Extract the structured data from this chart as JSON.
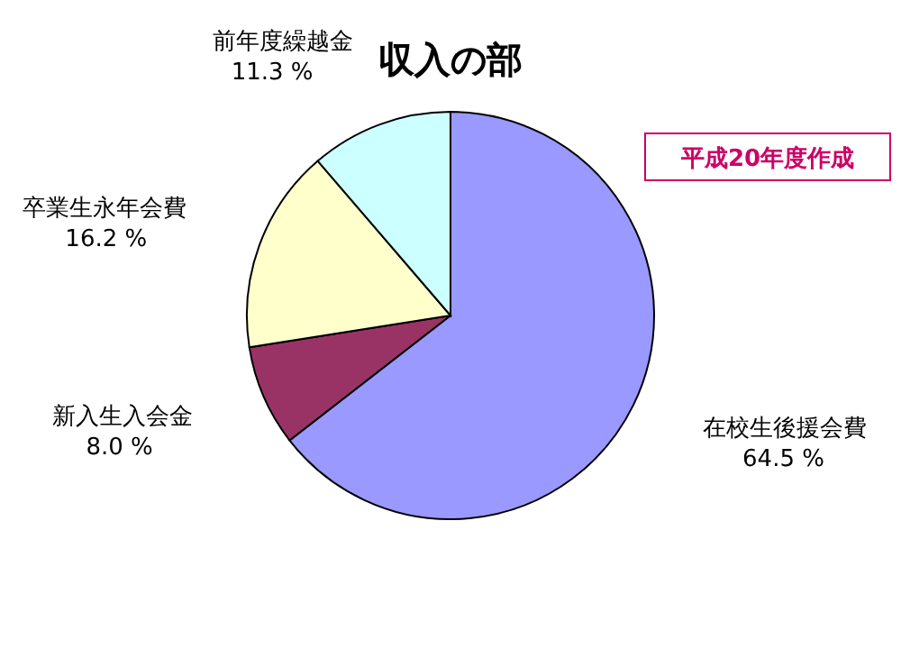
{
  "chart_data": {
    "type": "pie",
    "title": "収入の部",
    "categories": [
      "在校生後援会費",
      "新入生入会金",
      "卒業生永年会費",
      "前年度繰越金"
    ],
    "values": [
      64.5,
      8.0,
      16.2,
      11.3
    ],
    "colors": [
      "#9999ff",
      "#993366",
      "#ffffcc",
      "#ccffff"
    ],
    "value_labels": [
      "64.5 %",
      "8.0 %",
      "16.2 %",
      "11.3 %"
    ],
    "annotations": [
      "平成20年度作成"
    ]
  }
}
